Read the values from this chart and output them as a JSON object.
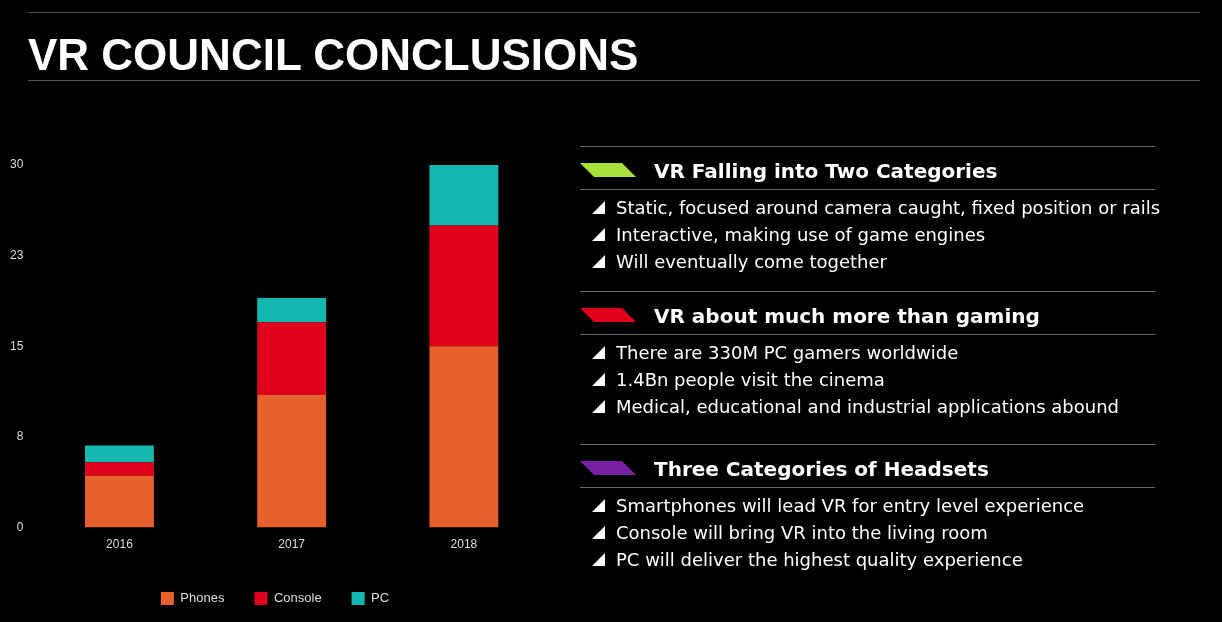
{
  "chart_data": [
    {
      "type": "bar",
      "title": "VR COUNCIL CONCLUSIONS",
      "stacked": true,
      "legend": "bottom",
      "grid": false,
      "categories": [
        "2016",
        "2017",
        "2018"
      ],
      "ylim": [
        0,
        30
      ],
      "yticks": [
        0,
        {
          "value": 7.5,
          "label": "8"
        },
        15,
        {
          "value": 22.5,
          "label": "23"
        },
        30
      ],
      "series": [
        {
          "name": "Phones",
          "color": "#e8602c",
          "values": [
            4.3,
            11,
            15
          ]
        },
        {
          "name": "Console",
          "color": "#e0001b",
          "values": [
            1.1,
            6,
            10
          ]
        },
        {
          "name": "PC",
          "color": "#14b8b0",
          "values": [
            1.4,
            2,
            5
          ]
        }
      ]
    },
    {
      "type": "other",
      "title": "VR Falling into Two Categories",
      "annotations": [
        "Static, focused around camera caught, fixed position or rails",
        "Interactive, making use of game engines",
        "Will eventually come together"
      ]
    },
    {
      "type": "other",
      "title": "VR about much more than gaming",
      "annotations": [
        "There are 330M PC gamers worldwide",
        "1.4Bn people visit the cinema",
        "Medical, educational and industrial applications abound"
      ]
    },
    {
      "type": "other",
      "title": "Three Categories of Headsets",
      "annotations": [
        "Smartphones will lead VR for entry level experience",
        "Console will bring VR into the living room",
        "PC will deliver the highest quality experience"
      ]
    }
  ]
}
